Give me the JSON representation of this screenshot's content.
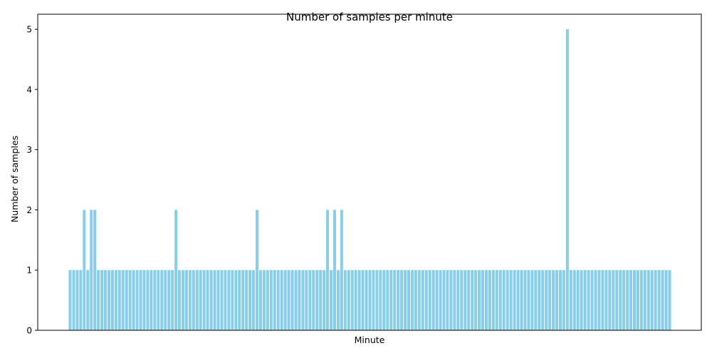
{
  "chart_data": {
    "type": "bar",
    "title": "Number of samples per minute",
    "xlabel": "Minute",
    "ylabel": "Number of samples",
    "ylim": [
      0,
      5.25
    ],
    "yticks": [
      0,
      1,
      2,
      3,
      4,
      5
    ],
    "bar_color": "#87ceeb",
    "grid": false,
    "values": [
      1,
      1,
      1,
      1,
      2,
      1,
      2,
      2,
      1,
      1,
      1,
      1,
      1,
      1,
      1,
      1,
      1,
      1,
      1,
      1,
      1,
      1,
      1,
      1,
      1,
      1,
      1,
      1,
      1,
      1,
      2,
      1,
      1,
      1,
      1,
      1,
      1,
      1,
      1,
      1,
      1,
      1,
      1,
      1,
      1,
      1,
      1,
      1,
      1,
      1,
      1,
      1,
      1,
      2,
      1,
      1,
      1,
      1,
      1,
      1,
      1,
      1,
      1,
      1,
      1,
      1,
      1,
      1,
      1,
      1,
      1,
      1,
      1,
      2,
      1,
      2,
      1,
      2,
      1,
      1,
      1,
      1,
      1,
      1,
      1,
      1,
      1,
      1,
      1,
      1,
      1,
      1,
      1,
      1,
      1,
      1,
      1,
      1,
      1,
      1,
      1,
      1,
      1,
      1,
      1,
      1,
      1,
      1,
      1,
      1,
      1,
      1,
      1,
      1,
      1,
      1,
      1,
      1,
      1,
      1,
      1,
      1,
      1,
      1,
      1,
      1,
      1,
      1,
      1,
      1,
      1,
      1,
      1,
      1,
      1,
      1,
      1,
      1,
      1,
      1,
      1,
      5,
      1,
      1,
      1,
      1,
      1,
      1,
      1,
      1,
      1,
      1,
      1,
      1,
      1,
      1,
      1,
      1,
      1,
      1,
      1,
      1,
      1,
      1,
      1,
      1,
      1,
      1,
      1,
      1,
      1
    ]
  }
}
